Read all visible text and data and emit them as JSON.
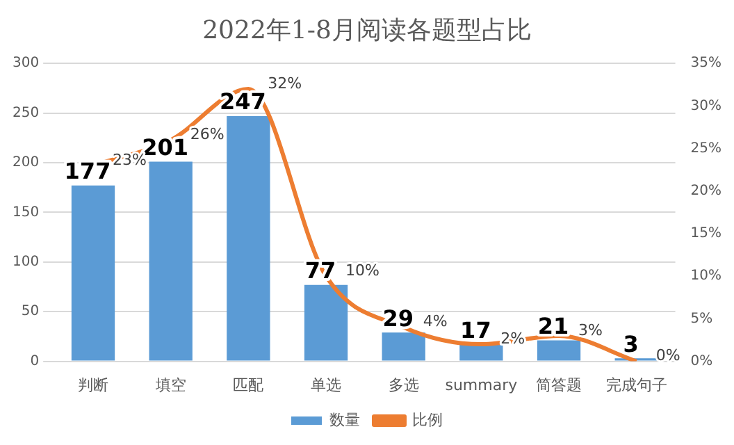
{
  "chart_data": {
    "type": "bar",
    "title": "2022年1-8月阅读各题型占比",
    "categories": [
      "判断",
      "填空",
      "匹配",
      "单选",
      "多选",
      "summary",
      "简答题",
      "完成句子"
    ],
    "series": [
      {
        "name": "数量",
        "color": "#5b9bd5",
        "values": [
          177,
          201,
          247,
          77,
          29,
          17,
          21,
          3
        ]
      },
      {
        "name": "比例",
        "type": "line",
        "axis": "y2",
        "color": "#ed7d31",
        "values": [
          23,
          26,
          32,
          10,
          4,
          2,
          3,
          0
        ],
        "value_labels": [
          "23%",
          "26%",
          "32%",
          "10%",
          "4%",
          "2%",
          "3%",
          "0%"
        ]
      }
    ],
    "ylim": [
      0,
      300
    ],
    "yticks": [
      0,
      50,
      100,
      150,
      200,
      250,
      300
    ],
    "y2lim": [
      0,
      35
    ],
    "y2ticks": [
      {
        "value": 0,
        "label": "0%"
      },
      {
        "value": 5,
        "label": "5%"
      },
      {
        "value": 10,
        "label": "10%"
      },
      {
        "value": 15,
        "label": "15%"
      },
      {
        "value": 20,
        "label": "20%"
      },
      {
        "value": 25,
        "label": "25%"
      },
      {
        "value": 30,
        "label": "30%"
      },
      {
        "value": 35,
        "label": "35%"
      }
    ],
    "data_labels": true,
    "grid": "y",
    "legend": "bottom",
    "marker": "none",
    "line_style": "solid"
  }
}
